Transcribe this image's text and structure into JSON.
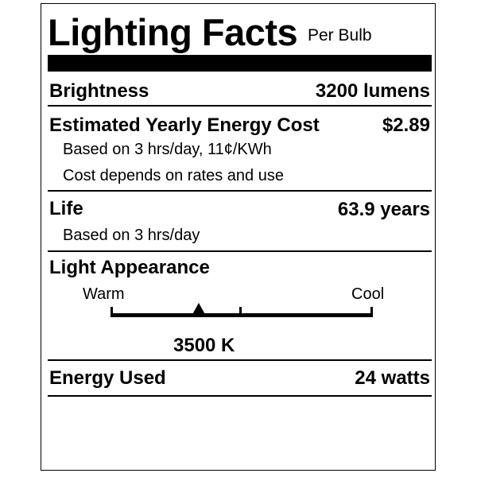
{
  "header": {
    "title": "Lighting Facts",
    "subtitle": "Per Bulb"
  },
  "brightness": {
    "label": "Brightness",
    "value": "3200 lumens"
  },
  "energy_cost": {
    "label": "Estimated Yearly Energy Cost",
    "value": "$2.89",
    "notes": [
      "Based on 3 hrs/day, 11¢/KWh",
      "Cost depends on rates and use"
    ]
  },
  "life": {
    "label": "Life",
    "value": "63.9 years",
    "note": "Based on 3 hrs/day"
  },
  "light_appearance": {
    "label": "Light Appearance",
    "warm_label": "Warm",
    "cool_label": "Cool",
    "value": "3500 K",
    "marker_fraction": 0.335
  },
  "energy_used": {
    "label": "Energy Used",
    "value": "24 watts"
  }
}
